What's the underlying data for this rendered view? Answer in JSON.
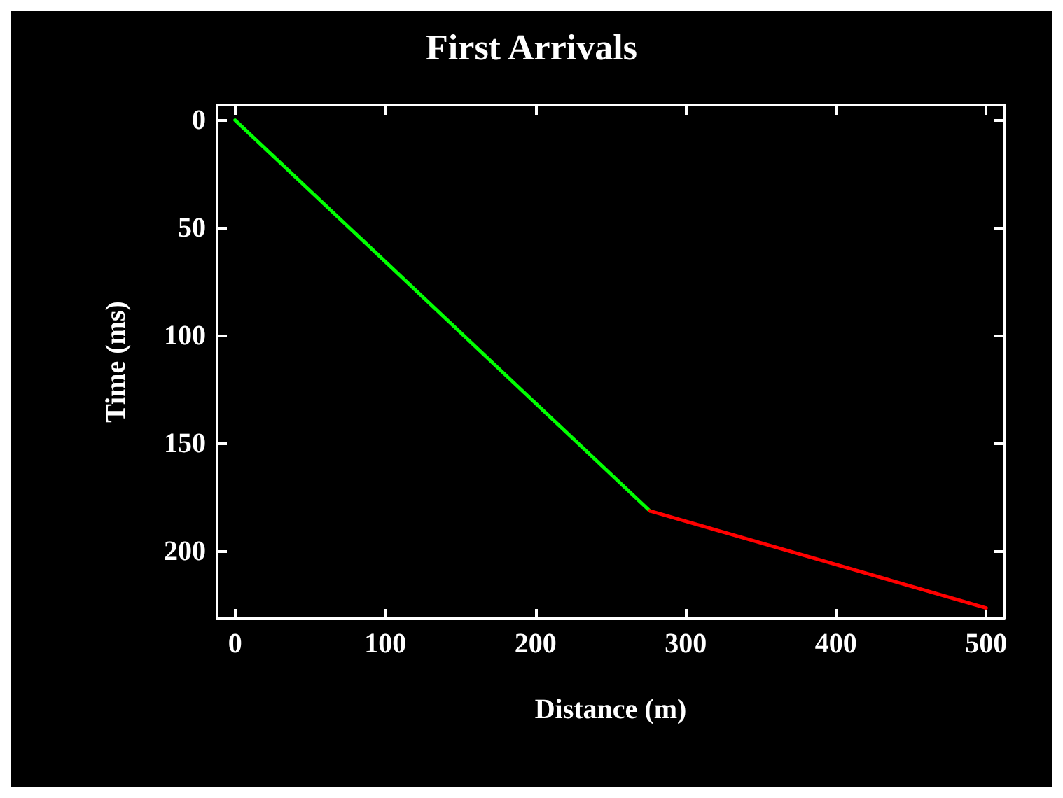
{
  "chart_data": {
    "type": "line",
    "title": "First Arrivals",
    "xlabel": "Distance (m)",
    "ylabel": "Time (ms)",
    "series": [
      {
        "color": "#00ff00",
        "x": [
          0,
          276
        ],
        "values": [
          0,
          181
        ]
      },
      {
        "color": "#ff0000",
        "x": [
          276,
          500
        ],
        "values": [
          181,
          226
        ]
      }
    ],
    "xlim": [
      -12,
      512
    ],
    "xticks": [
      0,
      100,
      200,
      300,
      400,
      500
    ],
    "ylim": [
      231,
      -7
    ],
    "yticks": [
      0,
      50,
      100,
      150,
      200
    ],
    "grid": false,
    "marker": "none",
    "line_style": "solid"
  }
}
